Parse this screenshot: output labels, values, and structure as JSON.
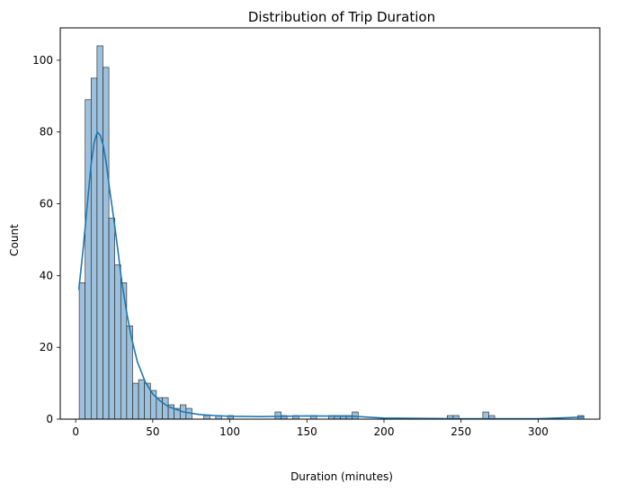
{
  "chart_data": {
    "type": "bar",
    "title": "Distribution of Trip Duration",
    "xlabel": "Duration (minutes)",
    "ylabel": "Count",
    "xlim": [
      -10,
      340
    ],
    "ylim": [
      0,
      109
    ],
    "xticks": [
      0,
      50,
      100,
      150,
      200,
      250,
      300
    ],
    "yticks": [
      0,
      20,
      40,
      60,
      80,
      100
    ],
    "grid": false,
    "bin_start": 2.3,
    "bin_width": 3.85,
    "series": [
      {
        "values": [
          38,
          89,
          95,
          104,
          98,
          56,
          43,
          38,
          26,
          10,
          11,
          10,
          8,
          6,
          6,
          4,
          3,
          4,
          3,
          0,
          0,
          1,
          0,
          1,
          0,
          1,
          0,
          0,
          0,
          0,
          0,
          0,
          0,
          2,
          1,
          0,
          1,
          0,
          0,
          1,
          0,
          0,
          1,
          1,
          1,
          1,
          2,
          0,
          0,
          0,
          0,
          0,
          0,
          0,
          0,
          0,
          0,
          0,
          0,
          0,
          0,
          0,
          1,
          1,
          0,
          0,
          0,
          0,
          2,
          1,
          0,
          0,
          0,
          0,
          0,
          0,
          0,
          0,
          0,
          0,
          0,
          0,
          0,
          0,
          1
        ]
      }
    ],
    "kde": {
      "x": [
        2,
        5,
        8,
        10,
        12,
        14,
        16,
        18,
        20,
        22,
        25,
        28,
        30,
        33,
        36,
        40,
        45,
        50,
        55,
        60,
        70,
        80,
        90,
        100,
        120,
        150,
        180,
        200,
        250,
        300,
        330
      ],
      "y": [
        36,
        48,
        62,
        71,
        77,
        80,
        79,
        76,
        71,
        64,
        55,
        45,
        38,
        30,
        23,
        16,
        10.5,
        7,
        5,
        3.5,
        2,
        1.3,
        1,
        0.8,
        0.7,
        0.9,
        0.8,
        0.3,
        0.1,
        0.1,
        0.6
      ]
    },
    "colors": {
      "bar_fill": "#9dc0dc",
      "bar_edge": "#1a1a1a",
      "kde_line": "#1f77b4"
    }
  }
}
